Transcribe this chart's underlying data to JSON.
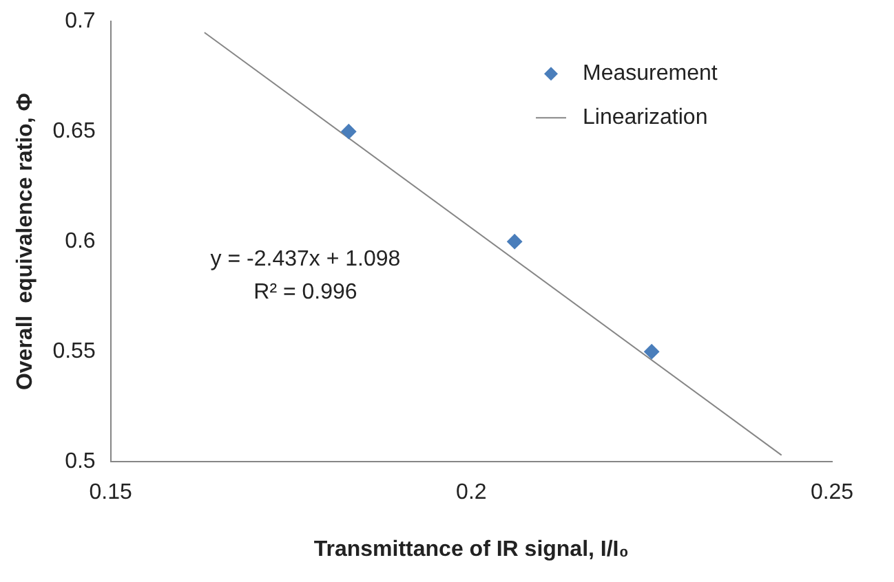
{
  "chart_data": {
    "type": "scatter",
    "xlabel": "Transmittance of IR signal, I/I₀",
    "ylabel": "Overall  equivalence ratio, Φ",
    "xlim": [
      0.15,
      0.25
    ],
    "xticks": [
      0.15,
      0.2,
      0.25
    ],
    "ylim": [
      0.5,
      0.7
    ],
    "yticks": [
      0.5,
      0.55,
      0.6,
      0.65,
      0.7
    ],
    "grid": false,
    "legend": "top right",
    "series": [
      {
        "name": "Measurement",
        "color": "#4a7ebb",
        "marker": "diamond",
        "x": [
          0.183,
          0.206,
          0.225
        ],
        "values": [
          0.65,
          0.6,
          0.55
        ]
      },
      {
        "name": "Linearization",
        "type": "line",
        "color": "#868686",
        "marker": "none",
        "line_style": "solid",
        "x": [
          0.163,
          0.243
        ],
        "values": [
          0.695,
          0.503
        ]
      }
    ],
    "annotations": [
      "y = -2.437x + 1.098",
      "R² = 0.996"
    ]
  }
}
